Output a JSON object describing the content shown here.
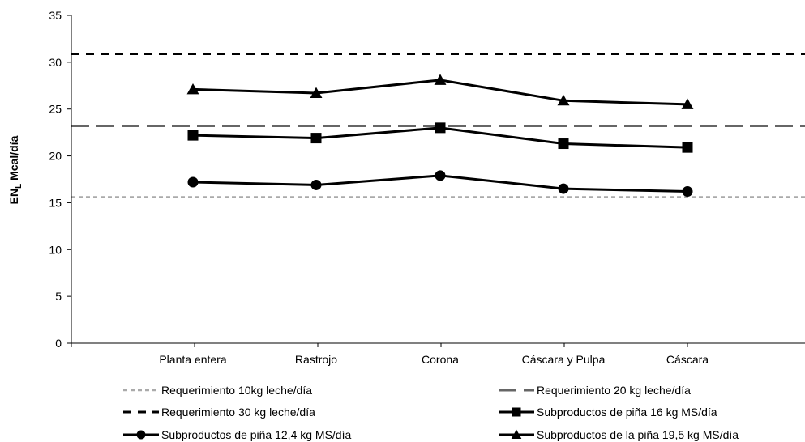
{
  "chart_data": {
    "type": "line",
    "title": "",
    "xlabel": "",
    "ylabel": "EN",
    "ylabel_sub": "L",
    "ylabel_suffix": " Mcal/día",
    "ylim": [
      0,
      35
    ],
    "yticks": [
      0,
      5,
      10,
      15,
      20,
      25,
      30,
      35
    ],
    "grid": false,
    "legend_position": "bottom",
    "categories": [
      "Planta entera",
      "Rastrojo",
      "Corona",
      "Cáscara y Pulpa",
      "Cáscara"
    ],
    "reference_lines": [
      {
        "name": "Requerimiento 10kg leche/día",
        "value": 15.6,
        "style": "dotted",
        "color": "#aaaaaa"
      },
      {
        "name": "Requerimiento 20 kg leche/día",
        "value": 23.2,
        "style": "long-dash",
        "color": "#666666"
      },
      {
        "name": "Requerimiento 30 kg leche/día",
        "value": 30.9,
        "style": "dashed",
        "color": "#000000"
      }
    ],
    "series": [
      {
        "name": "Subproductos de piña 16 kg MS/día",
        "marker": "square",
        "values": [
          22.2,
          21.9,
          23.0,
          21.3,
          20.9
        ]
      },
      {
        "name": "Subproductos de piña 12,4 kg MS/día",
        "marker": "circle",
        "values": [
          17.2,
          16.9,
          17.9,
          16.5,
          16.2
        ]
      },
      {
        "name": "Subproductos de la piña 19,5 kg MS/día",
        "marker": "triangle",
        "values": [
          27.1,
          26.7,
          28.1,
          25.9,
          25.5
        ]
      }
    ]
  }
}
